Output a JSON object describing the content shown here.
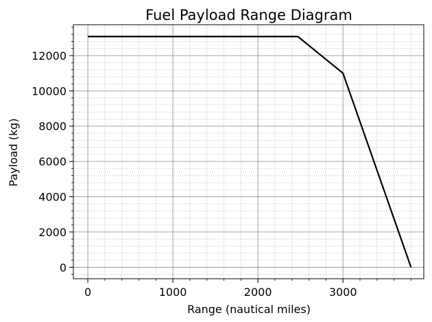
{
  "chart_data": {
    "type": "line",
    "title": "Fuel Payload Range Diagram",
    "xlabel": "Range (nautical miles)",
    "ylabel": "Payload (kg)",
    "xlim": [
      -170,
      3950
    ],
    "ylim": [
      -650,
      13750
    ],
    "x_ticks": [
      0,
      1000,
      2000,
      3000
    ],
    "x_tick_labels": [
      "0",
      "1000",
      "2000",
      "3000"
    ],
    "x_minor_step": 200,
    "y_ticks": [
      0,
      2000,
      4000,
      6000,
      8000,
      10000,
      12000
    ],
    "y_tick_labels": [
      "0",
      "2000",
      "4000",
      "6000",
      "8000",
      "10000",
      "12000"
    ],
    "y_minor_step": 400,
    "grid": true,
    "series": [
      {
        "color": "#000000",
        "x": [
          0,
          2470,
          3000,
          3800
        ],
        "y": [
          13080,
          13080,
          11000,
          0
        ]
      }
    ]
  }
}
